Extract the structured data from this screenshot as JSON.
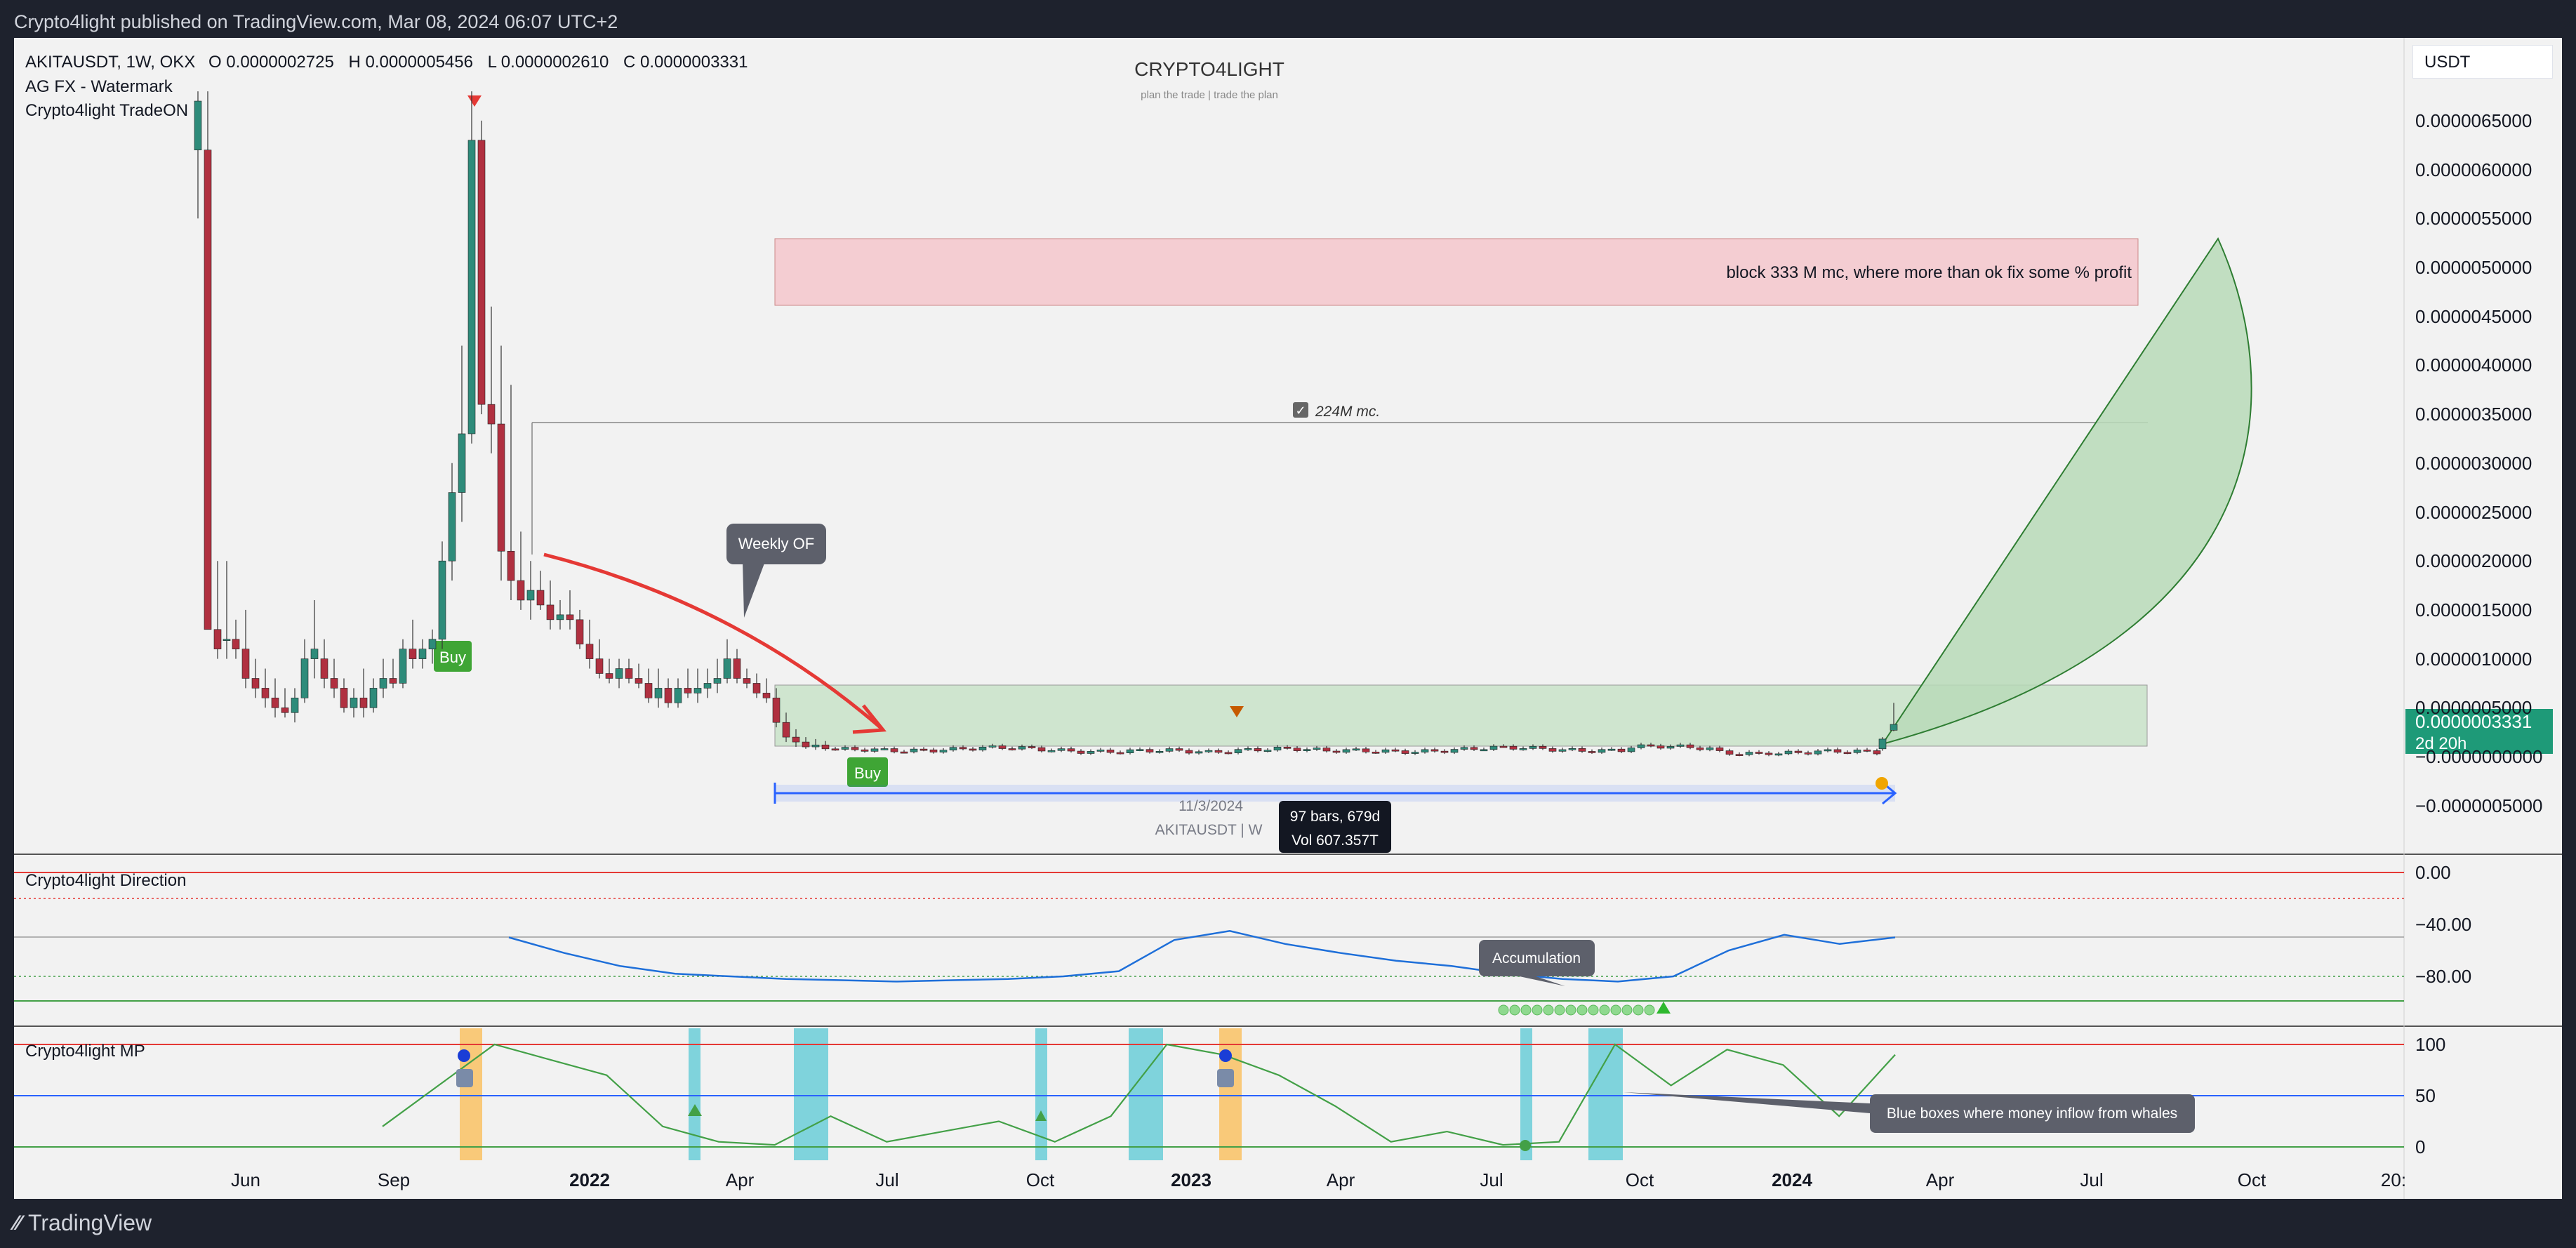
{
  "header": {
    "published": "Crypto4light published on TradingView.com, Mar 08, 2024 06:07 UTC+2"
  },
  "footer": {
    "logo_text": "TradingView",
    "logo_icon": "tradingview-logo-icon"
  },
  "legend": {
    "symbol": "AKITAUSDT, 1W, OKX",
    "o_label": "O",
    "o_value": "0.0000002725",
    "h_label": "H",
    "h_value": "0.0000005456",
    "l_label": "L",
    "l_value": "0.0000002610",
    "c_label": "C",
    "c_value": "0.0000003331",
    "line2": "AG FX - Watermark",
    "line3": "Crypto4light TradeON"
  },
  "watermark": {
    "title": "CRYPTO4LIGHT",
    "subtitle": "plan the trade | trade the plan"
  },
  "currency_selector": "USDT",
  "price_axis": {
    "ticks": [
      "0.0000065000",
      "0.0000060000",
      "0.0000055000",
      "0.0000050000",
      "0.0000045000",
      "0.0000040000",
      "0.0000035000",
      "0.0000030000",
      "0.0000025000",
      "0.0000020000",
      "0.0000015000",
      "0.0000010000",
      "0.0000005000",
      "−0.0000000000",
      "−0.0000005000"
    ],
    "last_price": "0.0000003331",
    "countdown": "2d 20h"
  },
  "annotations": {
    "red_zone": "block 333 M mc, where more than ok fix some % profit",
    "line_label": "224M mc.",
    "weekly_of": "Weekly OF",
    "buy_1": "Buy",
    "buy_2": "Buy",
    "range_date": "11/3/2024",
    "range_symbol": "AKITAUSDT | W",
    "range_bars": "97 bars, 679d",
    "range_vol": "Vol 607.357T",
    "accumulation": "Accumulation",
    "whales": "Blue boxes where money inflow from whales"
  },
  "panel_direction": {
    "title": "Crypto4light Direction",
    "ticks": [
      "0.00",
      "−40.00",
      "−80.00"
    ]
  },
  "panel_mp": {
    "title": "Crypto4light MP",
    "ticks": [
      "100",
      "50",
      "0"
    ]
  },
  "time_axis": {
    "labels": [
      "Jun",
      "Sep",
      "2022",
      "Apr",
      "Jul",
      "Oct",
      "2023",
      "Apr",
      "Jul",
      "Oct",
      "2024",
      "Apr",
      "Jul",
      "Oct",
      "20:"
    ]
  },
  "colors": {
    "up": "#26a69a",
    "down": "#b2283b",
    "up_candle": "#2e8b7a",
    "down_candle": "#b03040",
    "blue_line": "#1e6fd9",
    "mp_line": "#43a047"
  },
  "chart_data": [
    {
      "type": "candlestick",
      "title": "AKITAUSDT, 1W, OKX",
      "ylabel": "USDT",
      "ylim": [
        -6e-07,
        6.8e-06
      ],
      "x_ticks": [
        "Jun",
        "Sep",
        "2022",
        "Apr",
        "Jul",
        "Oct",
        "2023",
        "Apr",
        "Jul",
        "Oct",
        "2024",
        "Apr",
        "Jul",
        "Oct"
      ],
      "approx_weekly_closes": [
        6.2e-06,
        1.4e-06,
        1.2e-06,
        1e-06,
        9e-07,
        7e-07,
        6e-07,
        8e-07,
        1.1e-06,
        9e-07,
        8e-07,
        7e-07,
        8e-07,
        1.2e-06,
        3e-06,
        5.4e-06,
        3.6e-06,
        1.7e-06,
        1.5e-06,
        1.3e-06,
        1.1e-06,
        9e-07,
        8e-07,
        8e-07,
        7e-07,
        6e-07,
        4e-07,
        2e-07,
        1e-07,
        1e-07,
        1e-07,
        1e-07,
        1e-07,
        2e-07,
        2e-07,
        1e-07,
        1e-07,
        1e-07,
        1e-07,
        1e-07,
        1e-07,
        1e-07,
        1e-07,
        3.331e-07
      ],
      "last": 3.331e-07
    },
    {
      "type": "line",
      "title": "Crypto4light Direction",
      "ylim": [
        -100,
        0
      ],
      "series": [
        {
          "name": "",
          "values": [
            -50,
            -62,
            -72,
            -78,
            -80,
            -82,
            -83,
            -84,
            -83,
            -82,
            -80,
            -76,
            -52,
            -45,
            -55,
            -62,
            -68,
            -72,
            -78,
            -82,
            -84,
            -80,
            -60,
            -48,
            -55,
            -50
          ]
        }
      ]
    },
    {
      "type": "line",
      "title": "Crypto4light MP",
      "ylim": [
        0,
        110
      ],
      "series": [
        {
          "name": "",
          "values": [
            20,
            60,
            100,
            85,
            70,
            20,
            5,
            2,
            30,
            5,
            15,
            25,
            5,
            30,
            100,
            90,
            70,
            40,
            5,
            15,
            2,
            5,
            100,
            60,
            95,
            80,
            30,
            90
          ]
        }
      ]
    }
  ]
}
